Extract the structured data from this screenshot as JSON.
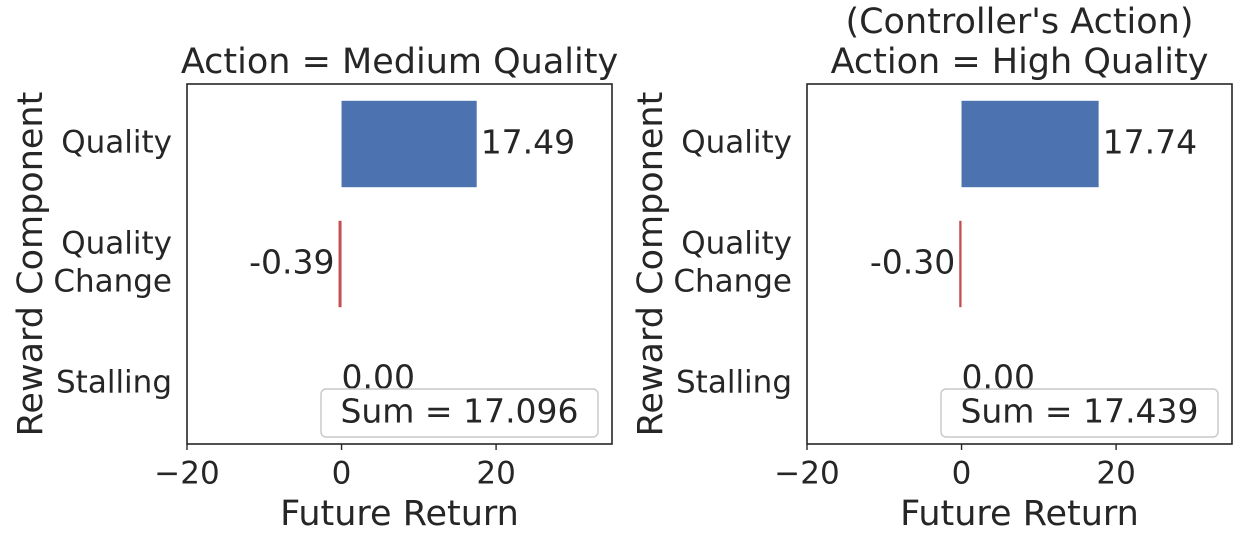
{
  "chart_data": [
    {
      "type": "bar",
      "orientation": "horizontal",
      "title": "Action = Medium Quality",
      "xlabel": "Future Return",
      "ylabel": "Reward Component",
      "categories": [
        "Quality",
        "Quality\nChange",
        "Stalling"
      ],
      "values": [
        17.49,
        -0.39,
        0.0
      ],
      "value_labels": [
        "17.49",
        "-0.39",
        "0.00"
      ],
      "xlim": [
        -20,
        35
      ],
      "xticks": [
        -20,
        0,
        20
      ],
      "xtick_labels": [
        "−20",
        "0",
        "20"
      ],
      "annotation": "Sum = 17.096",
      "grid": false
    },
    {
      "type": "bar",
      "orientation": "horizontal",
      "title": "(Controller's Action)\nAction = High Quality",
      "xlabel": "Future Return",
      "ylabel": "Reward Component",
      "categories": [
        "Quality",
        "Quality\nChange",
        "Stalling"
      ],
      "values": [
        17.74,
        -0.3,
        0.0
      ],
      "value_labels": [
        "17.74",
        "-0.30",
        "0.00"
      ],
      "xlim": [
        -20,
        35
      ],
      "xticks": [
        -20,
        0,
        20
      ],
      "xtick_labels": [
        "−20",
        "0",
        "20"
      ],
      "annotation": "Sum = 17.439",
      "grid": false
    }
  ],
  "colors": {
    "positive_bar": "#4c72b0",
    "negative_bar": "#c44e52",
    "frame": "#262626",
    "text": "#262626"
  }
}
